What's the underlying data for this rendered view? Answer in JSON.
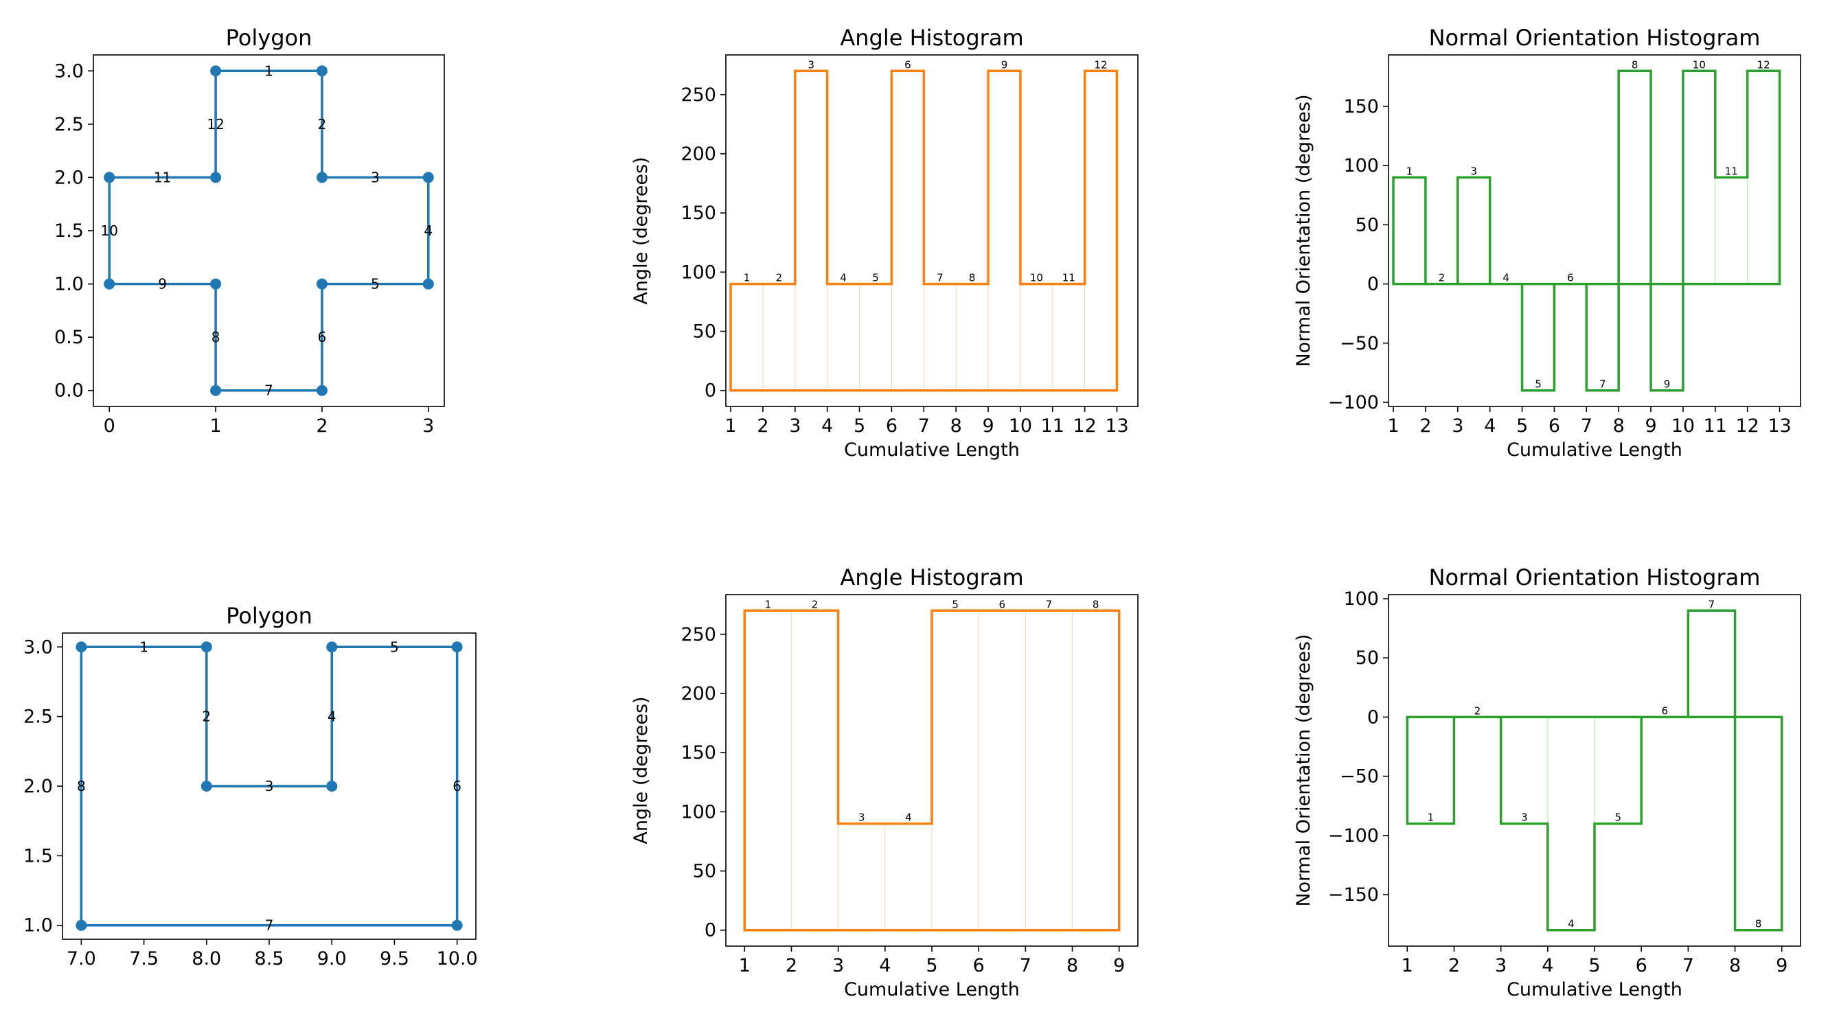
{
  "figure": {
    "background": "#ffffff"
  },
  "colors": {
    "polygon": "#1f77b4",
    "angle": "#ff7f0e",
    "normal": "#2ca02c"
  },
  "chart_data": [
    {
      "id": "poly1",
      "type": "line",
      "title": "Polygon",
      "xlabel": "",
      "ylabel": "",
      "xlim": [
        -0.15,
        3.15
      ],
      "ylim": [
        -0.15,
        3.15
      ],
      "xticks": [
        0,
        1,
        2,
        3
      ],
      "xticklabels": [
        "0",
        "1",
        "2",
        "3"
      ],
      "yticks": [
        0,
        0.5,
        1,
        1.5,
        2,
        2.5,
        3
      ],
      "yticklabels": [
        "0.0",
        "0.5",
        "1.0",
        "1.5",
        "2.0",
        "2.5",
        "3.0"
      ],
      "vertices": [
        [
          1,
          3
        ],
        [
          2,
          3
        ],
        [
          2,
          2
        ],
        [
          3,
          2
        ],
        [
          3,
          1
        ],
        [
          2,
          1
        ],
        [
          2,
          0
        ],
        [
          1,
          0
        ],
        [
          1,
          1
        ],
        [
          0,
          1
        ],
        [
          0,
          2
        ],
        [
          1,
          2
        ]
      ],
      "segment_labels": [
        "1",
        "2",
        "3",
        "4",
        "5",
        "6",
        "7",
        "8",
        "9",
        "10",
        "11",
        "12"
      ]
    },
    {
      "id": "ang1",
      "type": "bar",
      "title": "Angle Histogram",
      "xlabel": "Cumulative Length",
      "ylabel": "Angle (degrees)",
      "xlim": [
        0.85,
        13.65
      ],
      "ylim": [
        -13.5,
        283.5
      ],
      "xticks": [
        1,
        2,
        3,
        4,
        5,
        6,
        7,
        8,
        9,
        10,
        11,
        12,
        13
      ],
      "xticklabels": [
        "1",
        "2",
        "3",
        "4",
        "5",
        "6",
        "7",
        "8",
        "9",
        "10",
        "11",
        "12",
        "13"
      ],
      "yticks": [
        0,
        50,
        100,
        150,
        200,
        250
      ],
      "yticklabels": [
        "0",
        "50",
        "100",
        "150",
        "200",
        "250"
      ],
      "edges": [
        1,
        2,
        3,
        4,
        5,
        6,
        7,
        8,
        9,
        10,
        11,
        12,
        13
      ],
      "values": [
        90,
        90,
        270,
        90,
        90,
        270,
        90,
        90,
        270,
        90,
        90,
        270
      ],
      "bar_labels": [
        "1",
        "2",
        "3",
        "4",
        "5",
        "6",
        "7",
        "8",
        "9",
        "10",
        "11",
        "12"
      ]
    },
    {
      "id": "nrm1",
      "type": "bar",
      "title": "Normal Orientation Histogram",
      "xlabel": "Cumulative Length",
      "ylabel": "Normal Orientation (degrees)",
      "xlim": [
        0.85,
        13.65
      ],
      "ylim": [
        -103.5,
        193.5
      ],
      "xticks": [
        1,
        2,
        3,
        4,
        5,
        6,
        7,
        8,
        9,
        10,
        11,
        12,
        13
      ],
      "xticklabels": [
        "1",
        "2",
        "3",
        "4",
        "5",
        "6",
        "7",
        "8",
        "9",
        "10",
        "11",
        "12",
        "13"
      ],
      "yticks": [
        -100,
        -50,
        0,
        50,
        100,
        150
      ],
      "yticklabels": [
        "−100",
        "−50",
        "0",
        "50",
        "100",
        "150"
      ],
      "edges": [
        1,
        2,
        3,
        4,
        5,
        6,
        7,
        8,
        9,
        10,
        11,
        12,
        13
      ],
      "values": [
        90,
        0,
        90,
        0,
        -90,
        0,
        -90,
        180,
        -90,
        180,
        90,
        180
      ],
      "bar_labels": [
        "1",
        "2",
        "3",
        "4",
        "5",
        "6",
        "7",
        "8",
        "9",
        "10",
        "11",
        "12"
      ]
    },
    {
      "id": "poly2",
      "type": "line",
      "title": "Polygon",
      "xlabel": "",
      "ylabel": "",
      "xlim": [
        6.85,
        10.15
      ],
      "ylim": [
        0.9,
        3.1
      ],
      "xticks": [
        7,
        7.5,
        8,
        8.5,
        9,
        9.5,
        10
      ],
      "xticklabels": [
        "7.0",
        "7.5",
        "8.0",
        "8.5",
        "9.0",
        "9.5",
        "10.0"
      ],
      "yticks": [
        1,
        1.5,
        2,
        2.5,
        3
      ],
      "yticklabels": [
        "1.0",
        "1.5",
        "2.0",
        "2.5",
        "3.0"
      ],
      "vertices": [
        [
          7,
          3
        ],
        [
          8,
          3
        ],
        [
          8,
          2
        ],
        [
          9,
          2
        ],
        [
          9,
          3
        ],
        [
          10,
          3
        ],
        [
          10,
          1
        ],
        [
          7,
          1
        ]
      ],
      "segment_labels": [
        "1",
        "2",
        "3",
        "4",
        "5",
        "6",
        "7",
        "8"
      ]
    },
    {
      "id": "ang2",
      "type": "bar",
      "title": "Angle Histogram",
      "xlabel": "Cumulative Length",
      "ylabel": "Angle (degrees)",
      "xlim": [
        0.6,
        9.4
      ],
      "ylim": [
        -13.5,
        283.5
      ],
      "xticks": [
        1,
        2,
        3,
        4,
        5,
        6,
        7,
        8,
        9
      ],
      "xticklabels": [
        "1",
        "2",
        "3",
        "4",
        "5",
        "6",
        "7",
        "8",
        "9"
      ],
      "yticks": [
        0,
        50,
        100,
        150,
        200,
        250
      ],
      "yticklabels": [
        "0",
        "50",
        "100",
        "150",
        "200",
        "250"
      ],
      "edges": [
        1,
        2,
        3,
        4,
        5,
        6,
        7,
        8,
        9
      ],
      "values": [
        270,
        270,
        90,
        90,
        270,
        270,
        270,
        270
      ],
      "bar_labels": [
        "1",
        "2",
        "3",
        "4",
        "5",
        "6",
        "7",
        "8"
      ]
    },
    {
      "id": "nrm2",
      "type": "bar",
      "title": "Normal Orientation Histogram",
      "xlabel": "Cumulative Length",
      "ylabel": "Normal Orientation (degrees)",
      "xlim": [
        0.6,
        9.4
      ],
      "ylim": [
        -193.5,
        103.5
      ],
      "xticks": [
        1,
        2,
        3,
        4,
        5,
        6,
        7,
        8,
        9
      ],
      "xticklabels": [
        "1",
        "2",
        "3",
        "4",
        "5",
        "6",
        "7",
        "8",
        "9"
      ],
      "yticks": [
        -150,
        -100,
        -50,
        0,
        50,
        100
      ],
      "yticklabels": [
        "−150",
        "−100",
        "−50",
        "0",
        "50",
        "100"
      ],
      "edges": [
        1,
        2,
        3,
        4,
        5,
        6,
        7,
        8,
        9
      ],
      "values": [
        -90,
        0,
        -90,
        -180,
        -90,
        0,
        90,
        -180
      ],
      "bar_labels": [
        "1",
        "2",
        "3",
        "4",
        "5",
        "6",
        "7",
        "8"
      ]
    }
  ]
}
